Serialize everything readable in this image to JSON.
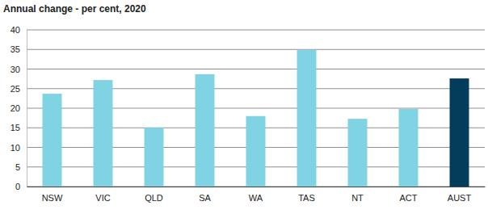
{
  "chart_data": {
    "type": "bar",
    "title": "Annual change - per cent, 2020",
    "categories": [
      "NSW",
      "VIC",
      "QLD",
      "SA",
      "WA",
      "TAS",
      "NT",
      "ACT",
      "AUST"
    ],
    "values": [
      23.7,
      27.2,
      15.0,
      28.7,
      18.0,
      34.9,
      17.3,
      19.8,
      27.6
    ],
    "colors": [
      "#7fd3e3",
      "#7fd3e3",
      "#7fd3e3",
      "#7fd3e3",
      "#7fd3e3",
      "#7fd3e3",
      "#7fd3e3",
      "#7fd3e3",
      "#023e5c"
    ],
    "ylim": [
      0,
      40
    ],
    "yticks": [
      0,
      5,
      10,
      15,
      20,
      25,
      30,
      35,
      40
    ],
    "grid": true
  }
}
